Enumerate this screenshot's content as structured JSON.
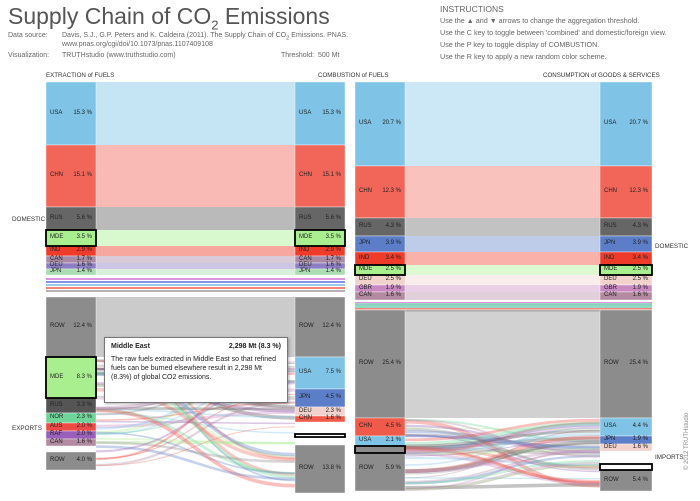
{
  "header": {
    "title_prefix": "Supply Chain of CO",
    "title_sub": "2",
    "title_suffix": " Emissions",
    "source_label": "Data source:",
    "source_text_a": "Davis, S.J., G.P. Peters and K. Caldeira (2011). The Supply Chain of CO",
    "source_text_sub": "2",
    "source_text_b": " Emissions. PNAS.",
    "source_url": "www.pnas.org/cgi/doi/10.1073/pnas.1107409108",
    "viz_label": "Visualization:",
    "viz_text": "TRUTHstudio (www.truthstudio.com)",
    "threshold_label": "Threshold:",
    "threshold_value": "500 Mt"
  },
  "instructions": {
    "title": "INSTRUCTIONS",
    "line1_a": "Use the",
    "line1_up": "▲",
    "line1_and": "and",
    "line1_down": "▼",
    "line1_b": "arrows to change the aggregation threshold.",
    "line2": "Use the C key to toggle between 'combined' and domestic/foreign view.",
    "line3": "Use the P key to toggle display of COMBUSTION.",
    "line4": "Use the R key to apply a new random color scheme."
  },
  "column_headers": {
    "extraction": "EXTRACTION of FUELS",
    "combustion": "COMBUSTION of FUELS",
    "consumption": "CONSUMPTION of GOODS & SERVICES"
  },
  "side_labels": {
    "domestic_left": "DOMESTIC",
    "exports": "EXPORTS",
    "domestic_right": "DOMESTIC",
    "imports": "IMPORTS"
  },
  "extraction": [
    {
      "label": "USA",
      "value": "15.3 %",
      "color": "#7fc4e6"
    },
    {
      "label": "CHN",
      "value": "15.1 %",
      "color": "#f2665a"
    },
    {
      "label": "RUS",
      "value": "5.6 %",
      "color": "#666666"
    },
    {
      "label": "MDE",
      "value": "3.5 %",
      "color": "#a9ef8f"
    },
    {
      "label": "IND",
      "value": "2.9 %",
      "color": "#ef3b2a"
    },
    {
      "label": "CAN",
      "value": "1.7 %",
      "color": "#a88aa6"
    },
    {
      "label": "DEU",
      "value": "1.6 %",
      "color": "#8e7fc2"
    },
    {
      "label": "JPN",
      "value": "1.4 %",
      "color": "#a9ddb0"
    },
    {
      "label": "ROW",
      "value": "12.4 %",
      "color": "#8c8c8c"
    },
    {
      "label": "MDE",
      "value": "8.3 %",
      "color": "#a9ef8f"
    },
    {
      "label": "RUS",
      "value": "3.3 %",
      "color": "#555555"
    },
    {
      "label": "NOR",
      "value": "2.3 %",
      "color": "#6fd49a"
    },
    {
      "label": "AUS",
      "value": "2.0 %",
      "color": "#ee4a45"
    },
    {
      "label": "RAF",
      "value": "2.0 %",
      "color": "#9a5fb8"
    },
    {
      "label": "CAN",
      "value": "1.6 %",
      "color": "#b38aa0"
    },
    {
      "label": "ROW",
      "value": "4.0 %",
      "color": "#8c8c8c"
    }
  ],
  "combustion": [
    {
      "label": "USA",
      "value": "15.3 %",
      "color": "#7fc4e6"
    },
    {
      "label": "CHN",
      "value": "15.1 %",
      "color": "#f2665a"
    },
    {
      "label": "RUS",
      "value": "5.6 %",
      "color": "#666666"
    },
    {
      "label": "MDE",
      "value": "3.5 %",
      "color": "#a9ef8f"
    },
    {
      "label": "IND",
      "value": "2.9 %",
      "color": "#ef3b2a"
    },
    {
      "label": "CAN",
      "value": "1.7 %",
      "color": "#a88aa6"
    },
    {
      "label": "DEU",
      "value": "1.6 %",
      "color": "#8e7fc2"
    },
    {
      "label": "JPN",
      "value": "1.4 %",
      "color": "#a9ddb0"
    },
    {
      "label": "ROW",
      "value": "12.4 %",
      "color": "#8c8c8c"
    },
    {
      "label": "USA",
      "value": "7.5 %",
      "color": "#7fc4e6"
    },
    {
      "label": "JPN",
      "value": "4.5 %",
      "color": "#5c7dc8"
    },
    {
      "label": "DEU",
      "value": "2.3 %",
      "color": "#f2d2cc"
    },
    {
      "label": "CHN",
      "value": "1.6 %",
      "color": "#ef5a4a"
    },
    {
      "label": "ROW",
      "value": "13.8 %",
      "color": "#8c8c8c"
    }
  ],
  "consumption_left": [
    {
      "label": "USA",
      "value": "20.7 %",
      "color": "#7fc4e6"
    },
    {
      "label": "CHN",
      "value": "12.3 %",
      "color": "#f2665a"
    },
    {
      "label": "RUS",
      "value": "4.3 %",
      "color": "#666666"
    },
    {
      "label": "JPN",
      "value": "3.9 %",
      "color": "#5c7dc8"
    },
    {
      "label": "IND",
      "value": "3.4 %",
      "color": "#ef3b2a"
    },
    {
      "label": "MDE",
      "value": "2.5 %",
      "color": "#a9ef8f"
    },
    {
      "label": "DEU",
      "value": "2.5 %",
      "color": "#f2d2cc"
    },
    {
      "label": "GBR",
      "value": "1.9 %",
      "color": "#c98ac4"
    },
    {
      "label": "CAN",
      "value": "1.6 %",
      "color": "#b38aa0"
    },
    {
      "label": "ROW",
      "value": "25.4 %",
      "color": "#8c8c8c"
    },
    {
      "label": "CHN",
      "value": "4.5 %",
      "color": "#ef5a4a"
    },
    {
      "label": "USA",
      "value": "2.1 %",
      "color": "#7fc4e6"
    },
    {
      "label": "ROW",
      "value": "5.9 %",
      "color": "#8c8c8c"
    }
  ],
  "consumption_right": [
    {
      "label": "USA",
      "value": "20.7 %",
      "color": "#7fc4e6"
    },
    {
      "label": "CHN",
      "value": "12.3 %",
      "color": "#f2665a"
    },
    {
      "label": "RUS",
      "value": "4.3 %",
      "color": "#666666"
    },
    {
      "label": "JPN",
      "value": "3.9 %",
      "color": "#5c7dc8"
    },
    {
      "label": "IND",
      "value": "3.4 %",
      "color": "#ef3b2a"
    },
    {
      "label": "MDE",
      "value": "2.5 %",
      "color": "#a9ef8f"
    },
    {
      "label": "DEU",
      "value": "2.5 %",
      "color": "#f2d2cc"
    },
    {
      "label": "GBR",
      "value": "1.9 %",
      "color": "#c98ac4"
    },
    {
      "label": "CAN",
      "value": "1.6 %",
      "color": "#b38aa0"
    },
    {
      "label": "ROW",
      "value": "25.4 %",
      "color": "#8c8c8c"
    },
    {
      "label": "USA",
      "value": "4.4 %",
      "color": "#7fc4e6"
    },
    {
      "label": "JPN",
      "value": "1.9 %",
      "color": "#5c7dc8"
    },
    {
      "label": "DEU",
      "value": "1.6 %",
      "color": "#f2d2cc"
    },
    {
      "label": "ROW",
      "value": "5.4 %",
      "color": "#8c8c8c"
    }
  ],
  "tooltip": {
    "region": "Middle East",
    "value": "2,298 Mt (8.3 %)",
    "body": "The raw fuels extracted in Middle East so that refined fuels can be burned elsewhere result in 2,298 Mt (8.3%) of global CO2 emissions."
  },
  "copyright": "© 2012 TRUTHstudio"
}
